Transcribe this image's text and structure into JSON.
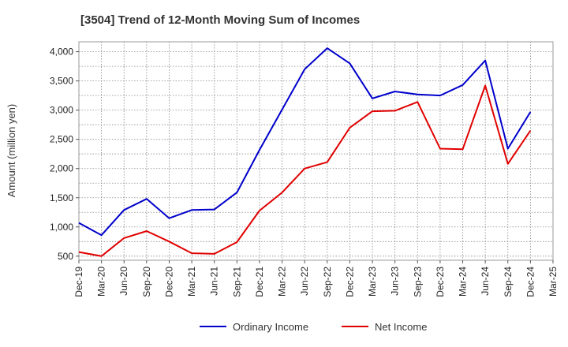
{
  "chart_data": {
    "type": "line",
    "title": "[3504]  Trend of 12-Month Moving Sum of Incomes",
    "xlabel": "",
    "ylabel": "Amount (million yen)",
    "ylim": [
      430,
      4170
    ],
    "yticks": [
      500,
      1000,
      1500,
      2000,
      2500,
      3000,
      3500,
      4000
    ],
    "ytick_labels": [
      "500",
      "1,000",
      "1,500",
      "2,000",
      "2,500",
      "3,000",
      "3,500",
      "4,000"
    ],
    "categories": [
      "Dec-19",
      "Mar-20",
      "Jun-20",
      "Sep-20",
      "Dec-20",
      "Mar-21",
      "Jun-21",
      "Sep-21",
      "Dec-21",
      "Mar-22",
      "Jun-22",
      "Sep-22",
      "Dec-22",
      "Mar-23",
      "Jun-23",
      "Sep-23",
      "Dec-23",
      "Mar-24",
      "Jun-24",
      "Sep-24",
      "Dec-24",
      "Mar-25"
    ],
    "grid": true,
    "legend_position": "bottom",
    "series": [
      {
        "name": "Ordinary Income",
        "color": "#0000cc",
        "values": [
          1070,
          860,
          1290,
          1480,
          1150,
          1290,
          1300,
          1590,
          2320,
          3010,
          3700,
          4060,
          3800,
          3200,
          3320,
          3270,
          3250,
          3430,
          3850,
          2340,
          2970,
          null
        ]
      },
      {
        "name": "Net Income",
        "color": "#e00000",
        "values": [
          570,
          500,
          810,
          930,
          750,
          550,
          540,
          740,
          1280,
          1590,
          2000,
          2110,
          2700,
          2980,
          2990,
          3140,
          2340,
          2330,
          3420,
          2080,
          2650,
          null
        ]
      }
    ]
  }
}
